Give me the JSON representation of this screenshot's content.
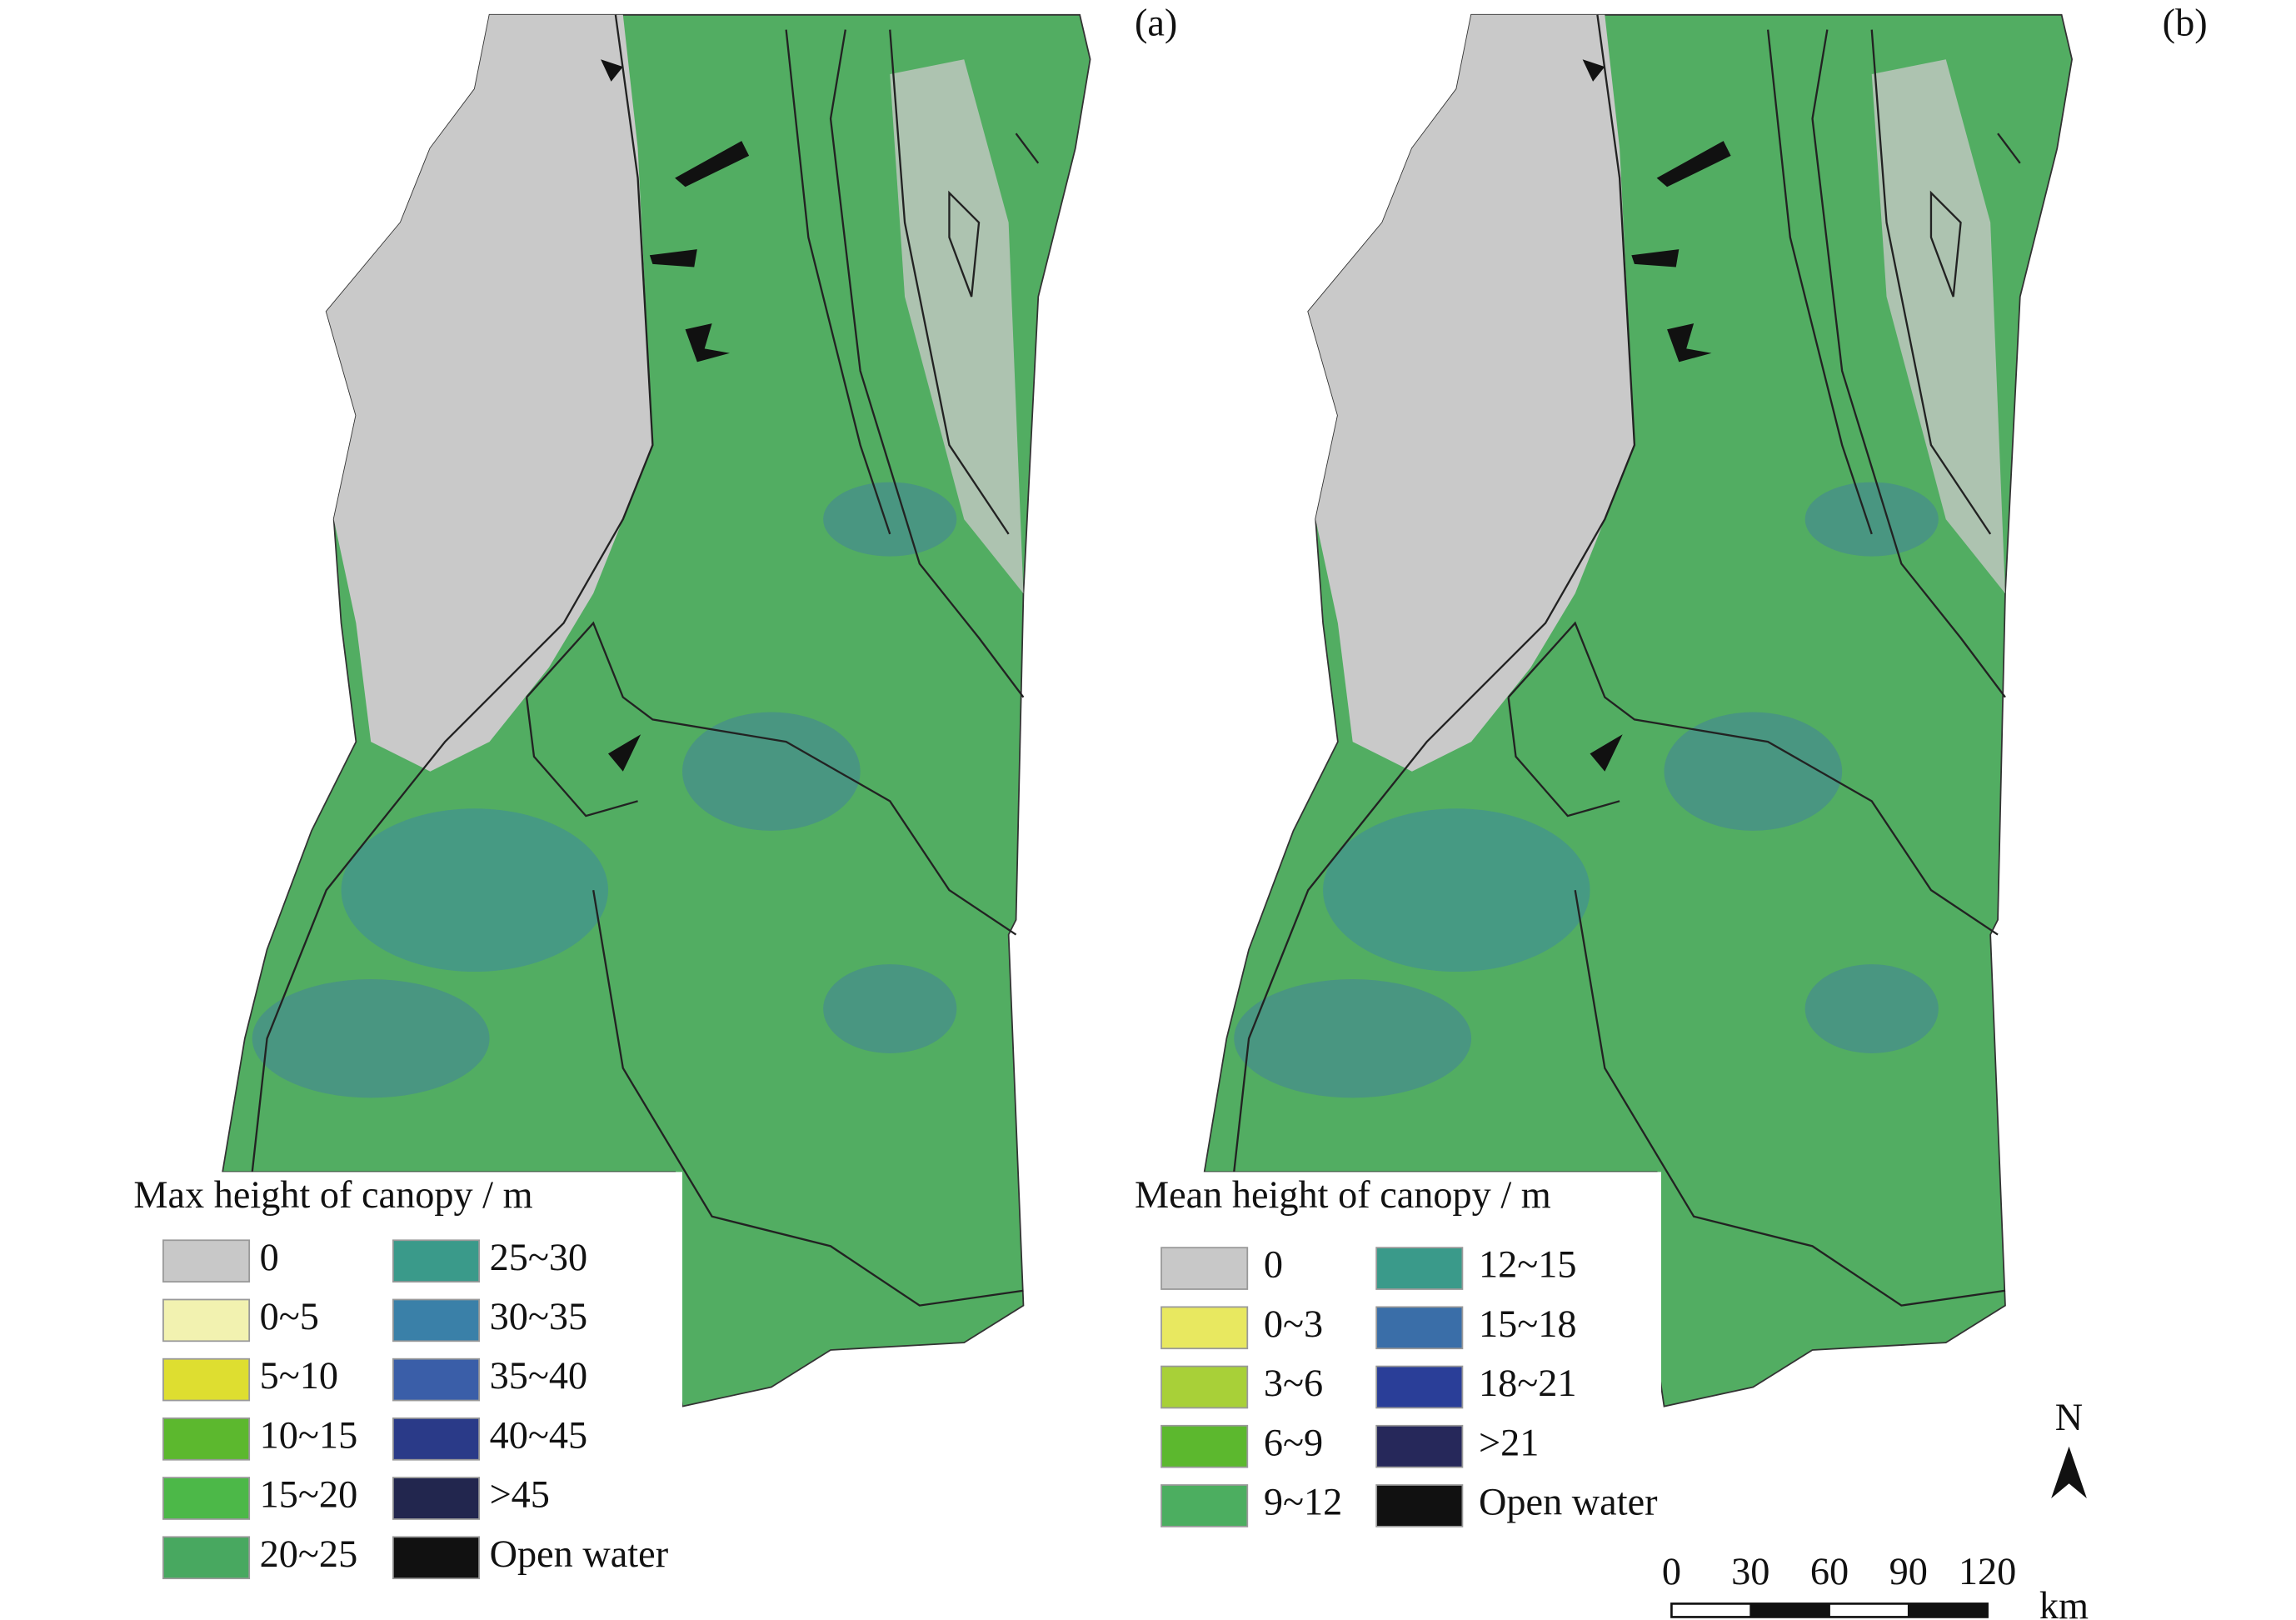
{
  "panels": [
    {
      "label": "(a)",
      "legend": {
        "title": "Max height of canopy / m",
        "items": [
          {
            "label": "0",
            "color": "#c8c8c8"
          },
          {
            "label": "0~5",
            "color": "#f2f2b0"
          },
          {
            "label": "5~10",
            "color": "#dede30"
          },
          {
            "label": "10~15",
            "color": "#5cb82e"
          },
          {
            "label": "15~20",
            "color": "#4cb848"
          },
          {
            "label": "20~25",
            "color": "#48a860"
          },
          {
            "label": "25~30",
            "color": "#3a9a8a"
          },
          {
            "label": "30~35",
            "color": "#3a80a8"
          },
          {
            "label": "35~40",
            "color": "#3a5ea8"
          },
          {
            "label": "40~45",
            "color": "#2a3a88"
          },
          {
            "label": ">45",
            "color": "#22264e"
          },
          {
            "label": "Open water",
            "color": "#111111"
          }
        ]
      }
    },
    {
      "label": "(b)",
      "legend": {
        "title": "Mean height of canopy / m",
        "items": [
          {
            "label": "0",
            "color": "#c8c8c8"
          },
          {
            "label": "0~3",
            "color": "#e8e860"
          },
          {
            "label": "3~6",
            "color": "#a8d038"
          },
          {
            "label": "6~9",
            "color": "#5cb82e"
          },
          {
            "label": "9~12",
            "color": "#4cae60"
          },
          {
            "label": "12~15",
            "color": "#3a9a8a"
          },
          {
            "label": "15~18",
            "color": "#3a6ea8"
          },
          {
            "label": "18~21",
            "color": "#2a3e98"
          },
          {
            "label": ">21",
            "color": "#26285a"
          },
          {
            "label": "Open water",
            "color": "#111111"
          }
        ]
      }
    }
  ],
  "north": "N",
  "scale_bar": {
    "ticks": [
      0,
      30,
      60,
      90,
      120
    ],
    "unit": "km"
  }
}
